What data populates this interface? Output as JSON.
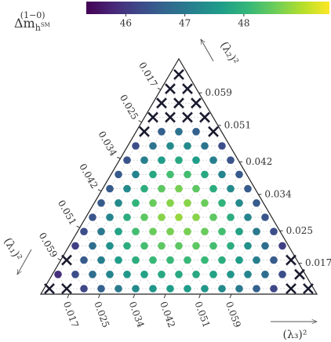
{
  "chart_data": {
    "type": "ternary",
    "colormap": "viridis",
    "colorbar": {
      "label": {
        "main": "Δm",
        "superscript": "(1−0)",
        "subscript": "h",
        "subsubscript": "SM"
      },
      "lim": [
        45.33,
        49.45
      ],
      "ticks": [
        46,
        47,
        48
      ]
    },
    "axes": [
      {
        "label": "(λ₁)²",
        "lim": [
          0.0094,
          0.0674
        ],
        "ticks": [
          0.017,
          0.025,
          0.034,
          0.042,
          0.051,
          0.059
        ]
      },
      {
        "label": "(λ₂)²",
        "lim": [
          0.0094,
          0.0674
        ],
        "ticks": [
          0.017,
          0.025,
          0.034,
          0.042,
          0.051,
          0.059
        ]
      },
      {
        "label": "(λ₃)²",
        "lim": [
          0.0097,
          0.0811
        ],
        "ticks": [
          0.017,
          0.025,
          0.034,
          0.042,
          0.051,
          0.059
        ]
      }
    ],
    "values": [
      [
        null
      ],
      [
        null,
        null
      ],
      [
        null,
        null,
        null
      ],
      [
        null,
        null,
        null,
        null
      ],
      [
        null,
        46.6,
        46.9,
        46.6,
        null
      ],
      [
        46.3,
        46.9,
        47.3,
        47.3,
        46.9,
        46.3
      ],
      [
        46.4,
        47.1,
        47.6,
        47.8,
        47.6,
        47.1,
        46.4
      ],
      [
        46.5,
        47.2,
        47.8,
        48.2,
        48.2,
        47.8,
        47.2,
        46.5
      ],
      [
        46.5,
        47.3,
        47.9,
        48.4,
        48.6,
        48.4,
        47.9,
        47.3,
        46.5
      ],
      [
        46.5,
        47.3,
        48.0,
        48.5,
        48.7,
        48.7,
        48.5,
        48.0,
        47.3,
        46.5
      ],
      [
        46.4,
        47.2,
        47.9,
        48.4,
        48.7,
        48.8,
        48.7,
        48.4,
        47.9,
        47.2,
        46.4
      ],
      [
        46.3,
        47.0,
        47.7,
        48.2,
        48.5,
        48.6,
        48.6,
        48.5,
        48.2,
        47.7,
        47.0,
        46.3
      ],
      [
        46.1,
        46.8,
        47.4,
        47.9,
        48.2,
        48.4,
        48.4,
        48.4,
        48.2,
        47.9,
        47.4,
        46.8,
        46.1
      ],
      [
        null,
        46.5,
        47.1,
        47.6,
        47.9,
        48.1,
        48.1,
        48.1,
        48.1,
        47.9,
        47.6,
        47.1,
        46.5,
        null
      ],
      [
        45.9,
        46.3,
        46.8,
        47.2,
        47.5,
        47.7,
        47.8,
        47.8,
        47.8,
        47.7,
        47.5,
        47.2,
        46.8,
        46.3,
        null
      ],
      [
        null,
        null,
        46.2,
        46.6,
        47.0,
        47.3,
        47.5,
        47.6,
        47.6,
        47.5,
        47.3,
        47.0,
        46.6,
        46.2,
        null,
        null
      ]
    ]
  }
}
